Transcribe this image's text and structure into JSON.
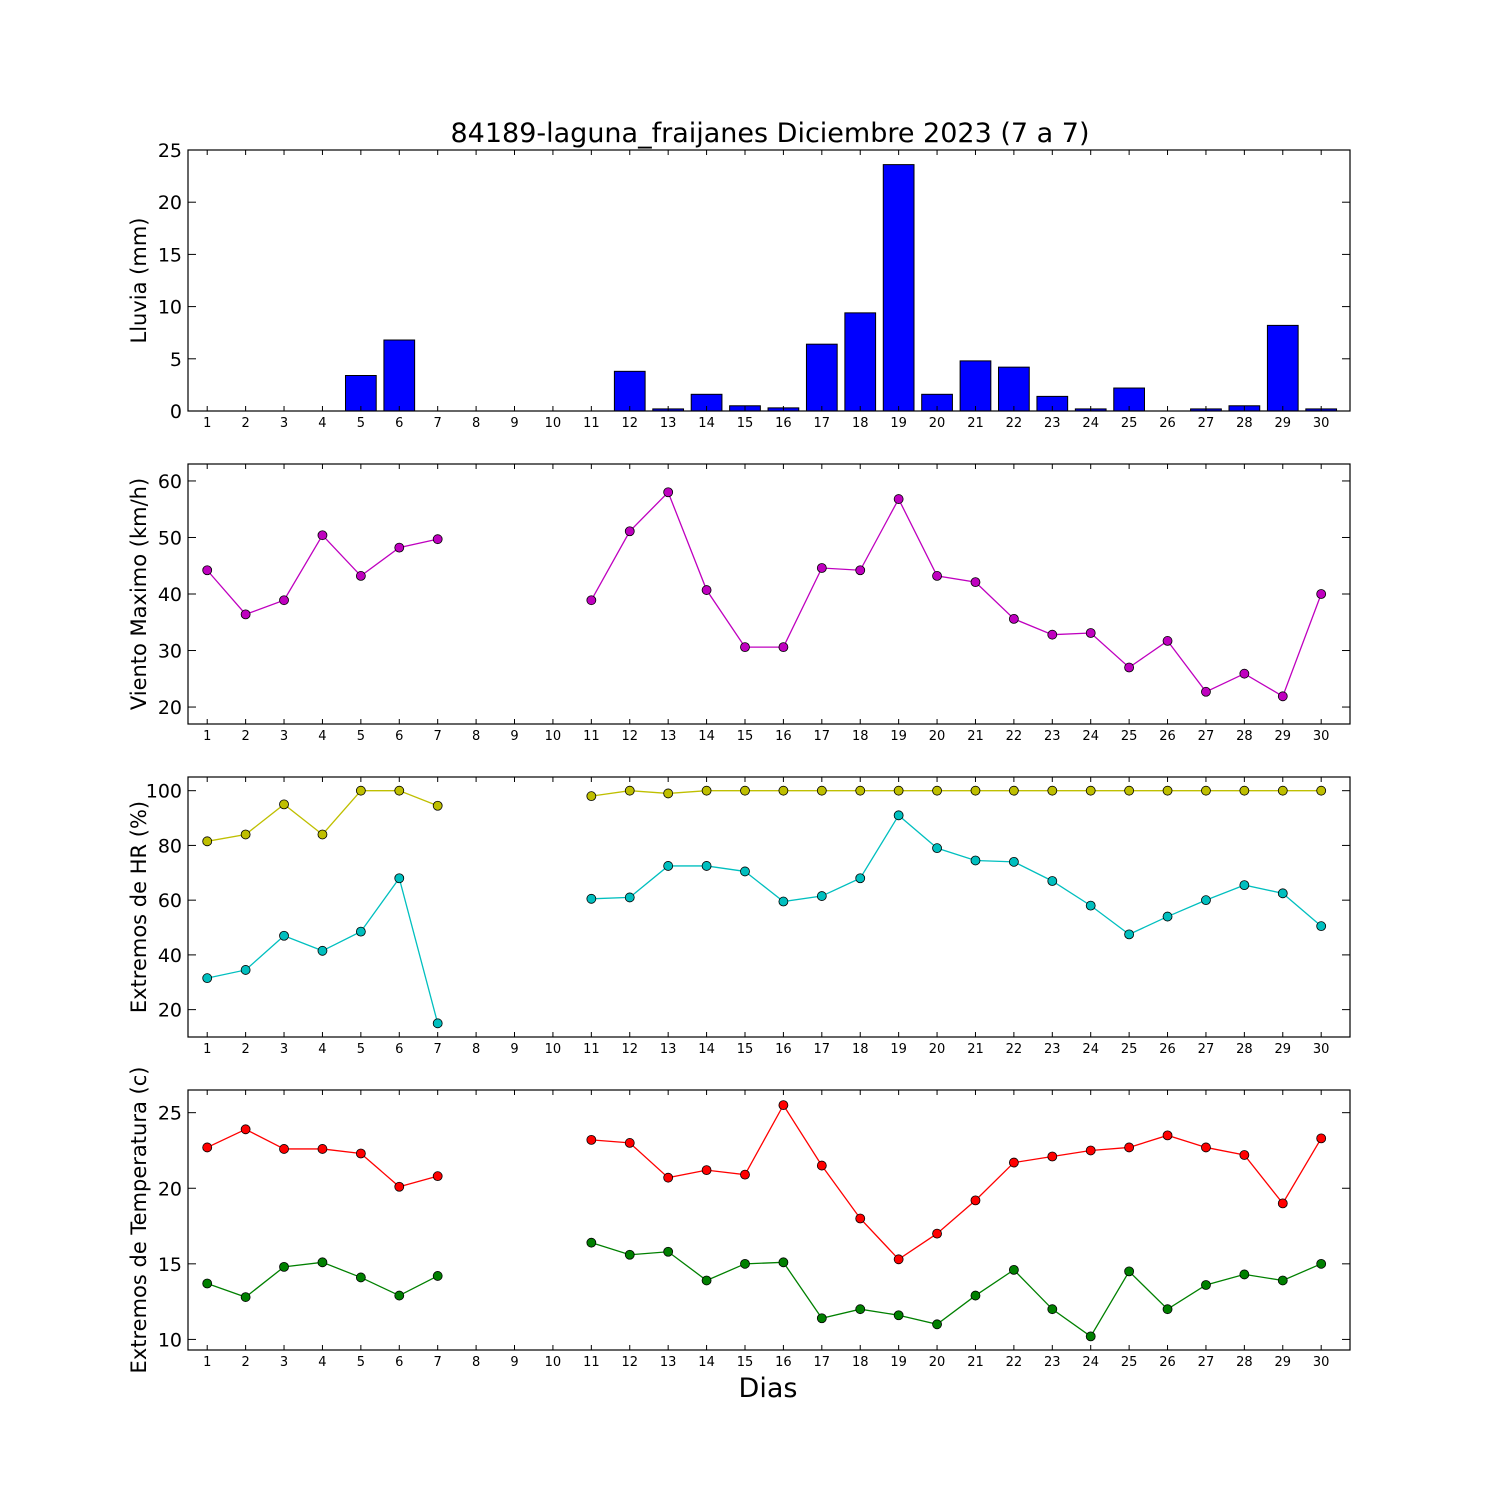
{
  "title": "84189-laguna_fraijanes Diciembre 2023  (7 a 7)",
  "xlabel": "Dias",
  "colors": {
    "rain_bar": "#0000ff",
    "wind": "#bf00bf",
    "hr_max": "#bfbf00",
    "hr_min": "#00bfbf",
    "temp_max": "#ff0000",
    "temp_min": "#008000"
  },
  "chart_data": [
    {
      "type": "bar",
      "ylabel": "Lluvia (mm)",
      "ylim": [
        0,
        25
      ],
      "yticks": [
        0,
        5,
        10,
        15,
        20,
        25
      ],
      "categories": [
        1,
        2,
        3,
        4,
        5,
        6,
        7,
        8,
        9,
        10,
        11,
        12,
        13,
        14,
        15,
        16,
        17,
        18,
        19,
        20,
        21,
        22,
        23,
        24,
        25,
        26,
        27,
        28,
        29,
        30
      ],
      "values": [
        0,
        0,
        0,
        0,
        3.4,
        6.8,
        0,
        0,
        0,
        0,
        0,
        3.8,
        0.2,
        1.6,
        0.5,
        0.3,
        6.4,
        9.4,
        23.6,
        1.6,
        4.8,
        4.2,
        1.4,
        0.2,
        2.2,
        0,
        0.2,
        0.5,
        8.2,
        0.2
      ],
      "grid": false
    },
    {
      "type": "line",
      "ylabel": "Viento Maximo (km/h)",
      "ylim": [
        17,
        63
      ],
      "yticks": [
        20,
        30,
        40,
        50,
        60
      ],
      "x": [
        1,
        2,
        3,
        4,
        5,
        6,
        7,
        8,
        9,
        10,
        11,
        12,
        13,
        14,
        15,
        16,
        17,
        18,
        19,
        20,
        21,
        22,
        23,
        24,
        25,
        26,
        27,
        28,
        29,
        30
      ],
      "series": [
        {
          "values": [
            44.2,
            36.4,
            38.9,
            50.4,
            43.2,
            48.2,
            49.7,
            null,
            null,
            null,
            38.9,
            51.1,
            58.0,
            40.7,
            30.6,
            30.6,
            44.6,
            44.2,
            56.8,
            43.2,
            42.1,
            35.6,
            32.8,
            33.1,
            27.0,
            31.7,
            22.7,
            25.9,
            21.9,
            40.0
          ]
        }
      ],
      "grid": false
    },
    {
      "type": "line",
      "ylabel": "Extremos de HR (%)",
      "ylim": [
        10,
        105
      ],
      "yticks": [
        20,
        40,
        60,
        80,
        100
      ],
      "x": [
        1,
        2,
        3,
        4,
        5,
        6,
        7,
        8,
        9,
        10,
        11,
        12,
        13,
        14,
        15,
        16,
        17,
        18,
        19,
        20,
        21,
        22,
        23,
        24,
        25,
        26,
        27,
        28,
        29,
        30
      ],
      "series": [
        {
          "values": [
            81.5,
            84,
            95,
            84,
            100,
            100,
            94.5,
            null,
            null,
            null,
            98,
            100,
            99,
            100,
            100,
            100,
            100,
            100,
            100,
            100,
            100,
            100,
            100,
            100,
            100,
            100,
            100,
            100,
            100,
            100
          ]
        },
        {
          "values": [
            31.5,
            34.5,
            47,
            41.5,
            48.5,
            68,
            15,
            null,
            null,
            null,
            60.5,
            61,
            72.5,
            72.5,
            70.5,
            59.5,
            61.5,
            68,
            91,
            79,
            74.5,
            74,
            67,
            58,
            47.5,
            54,
            60,
            65.5,
            62.5,
            50.5
          ]
        }
      ],
      "grid": false
    },
    {
      "type": "line",
      "ylabel": "Extremos de Temperatura (c)",
      "ylim": [
        9.3,
        26.5
      ],
      "yticks": [
        10,
        15,
        20,
        25
      ],
      "x": [
        1,
        2,
        3,
        4,
        5,
        6,
        7,
        8,
        9,
        10,
        11,
        12,
        13,
        14,
        15,
        16,
        17,
        18,
        19,
        20,
        21,
        22,
        23,
        24,
        25,
        26,
        27,
        28,
        29,
        30
      ],
      "series": [
        {
          "values": [
            22.7,
            23.9,
            22.6,
            22.6,
            22.3,
            20.1,
            20.8,
            null,
            null,
            null,
            23.2,
            23.0,
            20.7,
            21.2,
            20.9,
            25.5,
            21.5,
            18.0,
            15.3,
            17.0,
            19.2,
            21.7,
            22.1,
            22.5,
            22.7,
            23.5,
            22.7,
            22.2,
            19.0,
            23.3
          ]
        },
        {
          "values": [
            13.7,
            12.8,
            14.8,
            15.1,
            14.1,
            12.9,
            14.2,
            null,
            null,
            null,
            16.4,
            15.6,
            15.8,
            13.9,
            15.0,
            15.1,
            11.4,
            12.0,
            11.6,
            11.0,
            12.9,
            14.6,
            12.0,
            10.2,
            14.5,
            12.0,
            13.6,
            14.3,
            13.9,
            15.0
          ]
        }
      ],
      "grid": false
    }
  ]
}
